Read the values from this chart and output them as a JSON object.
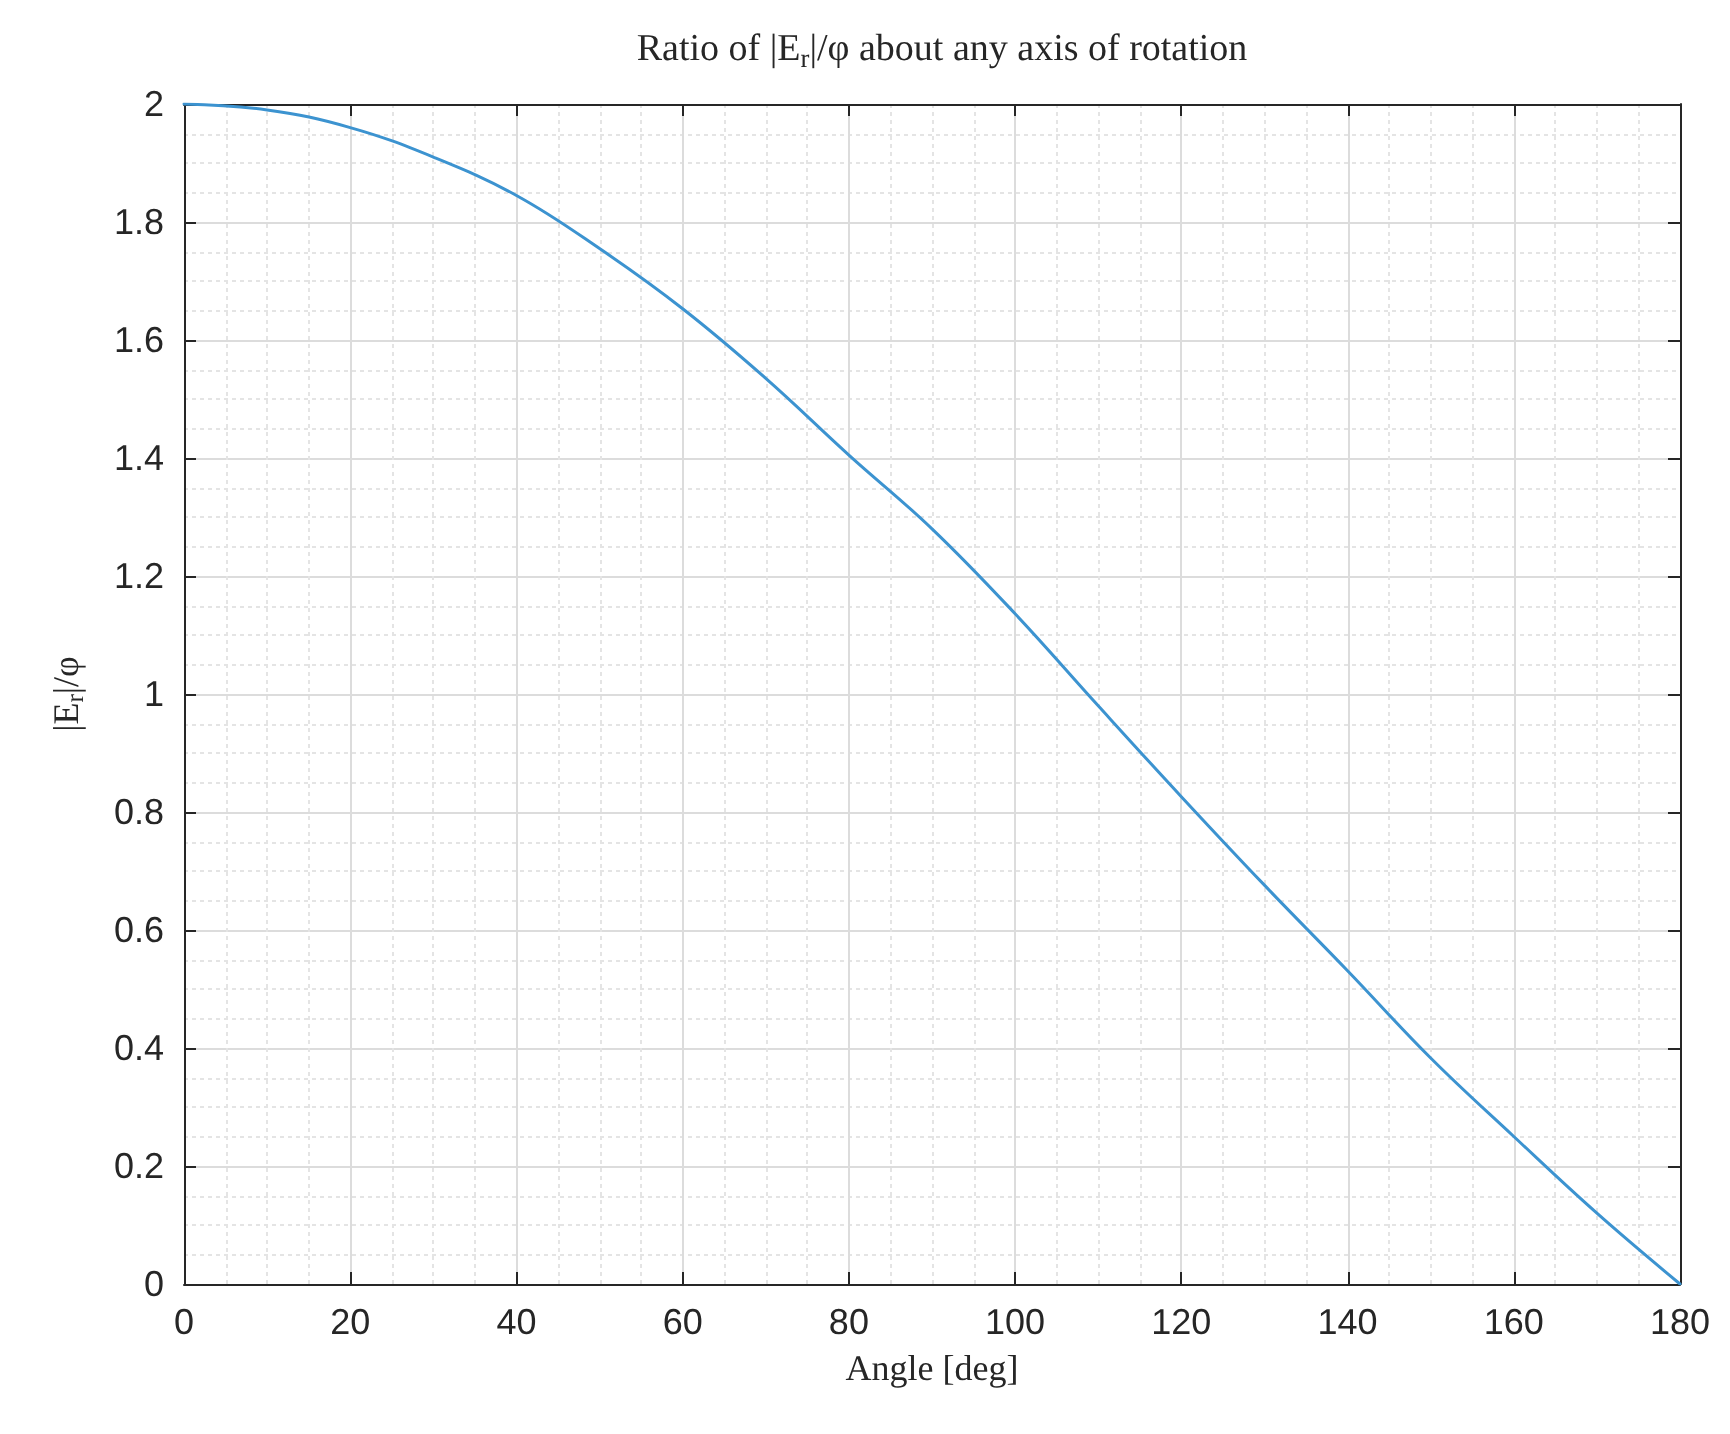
{
  "chart_data": {
    "type": "line",
    "title": "Ratio of |E$_{r}$|/φ about any axis of rotation",
    "xlabel": "Angle [deg]",
    "ylabel": "|E$_{r}$|/φ",
    "x": [
      0,
      10,
      20,
      30,
      40,
      50,
      60,
      70,
      80,
      90,
      100,
      110,
      120,
      130,
      140,
      150,
      160,
      170,
      180
    ],
    "series": [
      {
        "color": "#3c93d0",
        "values": [
          2,
          1.99,
          1.96,
          1.91,
          1.845,
          1.755,
          1.653,
          1.535,
          1.405,
          1.28,
          1.136,
          0.98,
          0.826,
          0.676,
          0.531,
          0.383,
          0.25,
          0.12,
          0
        ]
      }
    ],
    "xlim": [
      0,
      180
    ],
    "xticks": [
      0,
      20,
      40,
      60,
      80,
      100,
      120,
      140,
      160,
      180
    ],
    "ylim": [
      0,
      2
    ],
    "yticks": [
      0,
      0.2,
      0.4,
      0.6,
      0.8,
      1,
      1.2,
      1.4,
      1.6,
      1.8,
      2
    ],
    "grid": true,
    "marker": "none",
    "line_style": "solid"
  }
}
